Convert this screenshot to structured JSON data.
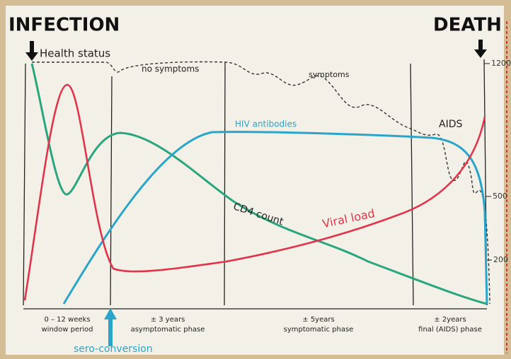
{
  "header": {
    "left": "INFECTION",
    "right": "DEATH"
  },
  "curves": {
    "health": "Health status",
    "no_symptoms": "no symptoms",
    "symptoms": "symptoms",
    "aids": "AIDS",
    "antibodies": "HIV antibodies",
    "cd4": "CD4 count",
    "viral_load": "Viral load"
  },
  "phases": [
    {
      "duration": "0 – 12 weeks",
      "name": "window period"
    },
    {
      "duration": "± 3 years",
      "name": "asymptomatic phase"
    },
    {
      "duration": "± 5years",
      "name": "symptomatic phase"
    },
    {
      "duration": "± 2years",
      "name": "final (AIDS) phase"
    }
  ],
  "seroconversion": "sero-conversion",
  "axis_labels": [
    "1200",
    "500",
    "200"
  ]
}
